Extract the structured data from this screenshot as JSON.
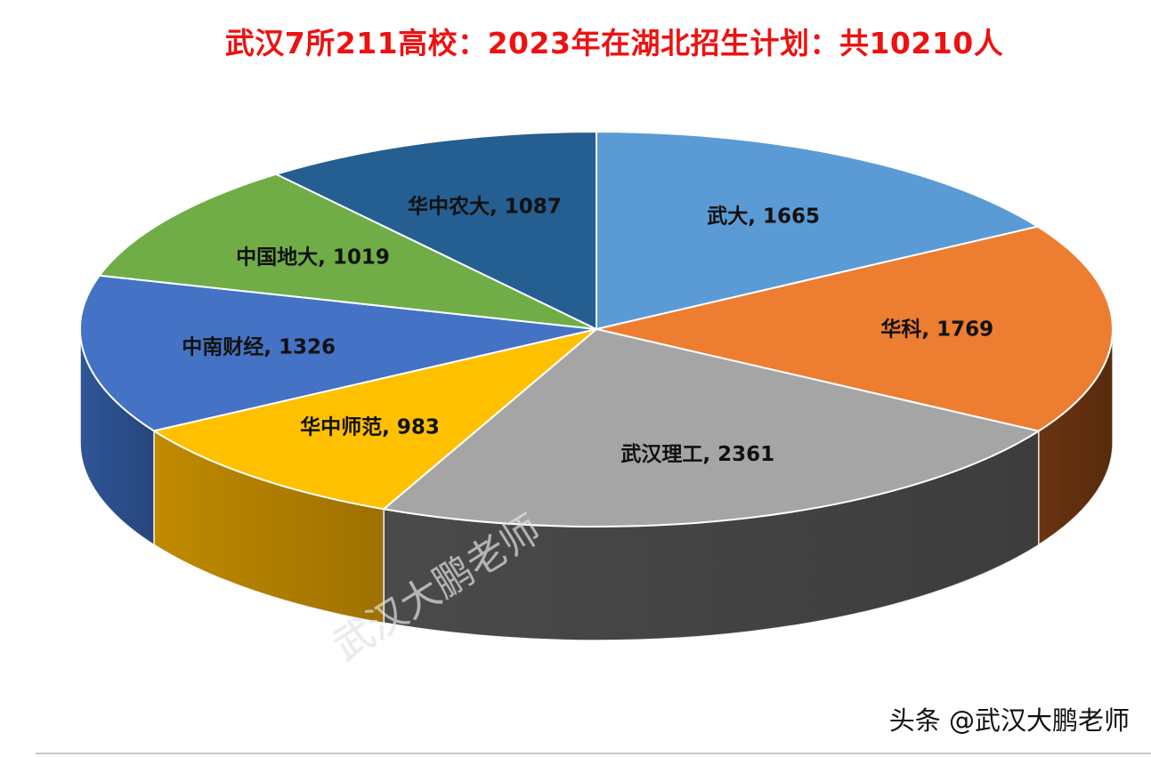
{
  "chart_data": {
    "type": "pie",
    "title": "武汉7所211高校：2023年在湖北招生计划：共10210人",
    "style": "3d",
    "slices": [
      {
        "label": "武大",
        "value": 1665,
        "color": "#5B9BD5",
        "side_color": "#3d6f9e"
      },
      {
        "label": "华科",
        "value": 1769,
        "color": "#ED7D31",
        "side_color": "#6a3410"
      },
      {
        "label": "武汉理工",
        "value": 2361,
        "color": "#A5A5A5",
        "side_color": "#4a4a4a"
      },
      {
        "label": "华中师范",
        "value": 983,
        "color": "#FFC000",
        "side_color": "#c08a00"
      },
      {
        "label": "中南财经",
        "value": 1326,
        "color": "#4472C4",
        "side_color": "#2f5597"
      },
      {
        "label": "中国地大",
        "value": 1019,
        "color": "#70AD47",
        "side_color": "#4e7a31"
      },
      {
        "label": "华中农大",
        "value": 1087,
        "color": "#255E91",
        "side_color": "#173c5e"
      }
    ]
  },
  "watermark": "武汉大鹏老师",
  "credit": "头条 @武汉大鹏老师"
}
